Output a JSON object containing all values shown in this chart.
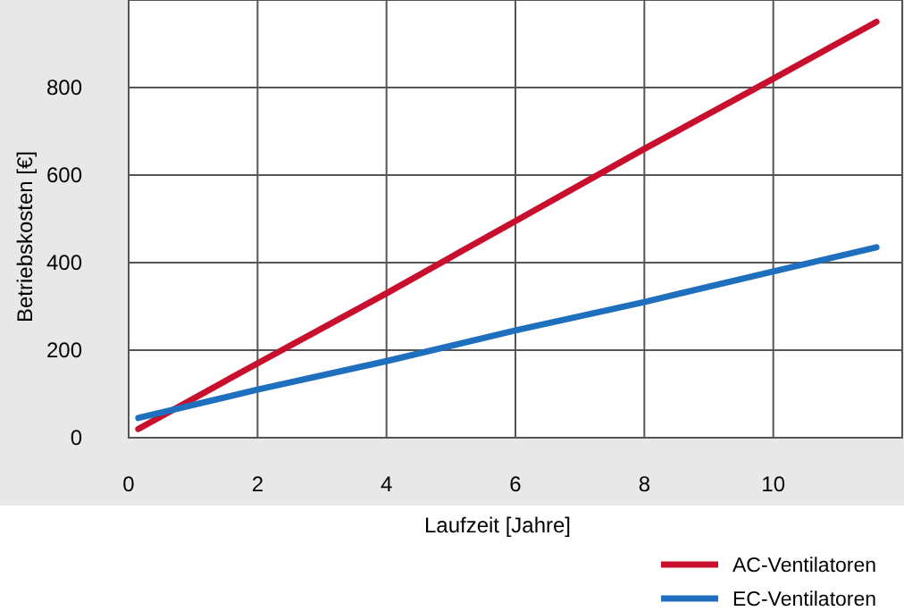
{
  "chart_data": {
    "type": "line",
    "xlabel": "Laufzeit [Jahre]",
    "ylabel": "Betriebskosten [€]",
    "xlim": [
      0,
      12
    ],
    "xticks": [
      0,
      2,
      4,
      6,
      8,
      10
    ],
    "ylim": [
      0,
      1000
    ],
    "yticks": [
      0,
      200,
      400,
      600,
      800
    ],
    "grid": true,
    "legend": "bottom right",
    "line_style": "solid",
    "marker": "none",
    "series": [
      {
        "name": "AC-Ventilatoren",
        "color": "#c8102e",
        "x": [
          0.15,
          2,
          4,
          6,
          8,
          10,
          11.6
        ],
        "values": [
          20,
          170,
          330,
          495,
          660,
          820,
          950
        ]
      },
      {
        "name": "EC-Ventilatoren",
        "color": "#1f6fbf",
        "x": [
          0.15,
          2,
          4,
          6,
          8,
          10,
          11.6
        ],
        "values": [
          45,
          110,
          175,
          245,
          310,
          380,
          435
        ]
      }
    ]
  }
}
